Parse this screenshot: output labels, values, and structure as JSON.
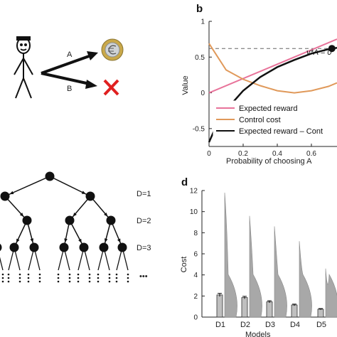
{
  "panel_a": {
    "option_a": "A",
    "option_b": "B",
    "coin_icon": "euro-coin-icon",
    "cross_icon": "red-cross-icon",
    "figure_icon": "stick-figure-icon",
    "cross_color": "#e02020"
  },
  "panel_b": {
    "label": "b",
    "annotation": "v*A = 0",
    "legend": [
      "Expected reward",
      "Control cost",
      "Expected reward – Cont"
    ],
    "colors": {
      "expected_reward": "#e8739a",
      "control_cost": "#e0995a",
      "difference": "#111111"
    }
  },
  "panel_c": {
    "depth_labels": [
      "D=1",
      "D=2",
      "D=3"
    ],
    "ellipsis": "•••"
  },
  "panel_d": {
    "label": "d",
    "bar_color": "#bfbfbf",
    "violin_color": "#a8a8a8"
  },
  "chart_data": [
    {
      "type": "line",
      "title": "",
      "xlabel": "Probability of choosing A",
      "ylabel": "Value",
      "xlim": [
        0,
        0.75
      ],
      "ylim": [
        -0.75,
        1.0
      ],
      "xticks": [
        "0",
        "0.2",
        "0.4",
        "0.6"
      ],
      "yticks": [
        "-0.5",
        "0",
        "0.5",
        "1"
      ],
      "reference_line": {
        "y": 0.62,
        "style": "dashed"
      },
      "marker": {
        "x": 0.72,
        "y": 0.62
      },
      "series": [
        {
          "name": "Expected reward",
          "x": [
            0,
            0.75
          ],
          "y": [
            0.0,
            0.75
          ]
        },
        {
          "name": "Control cost",
          "x": [
            0,
            0.1,
            0.2,
            0.3,
            0.4,
            0.5,
            0.6,
            0.7,
            0.75
          ],
          "y": [
            0.69,
            0.32,
            0.19,
            0.1,
            0.03,
            0.0,
            0.03,
            0.09,
            0.14
          ]
        },
        {
          "name": "Expected reward – Cont",
          "x": [
            0,
            0.05,
            0.1,
            0.2,
            0.3,
            0.4,
            0.5,
            0.6,
            0.7,
            0.75
          ],
          "y": [
            -0.69,
            -0.42,
            -0.24,
            0.03,
            0.22,
            0.36,
            0.46,
            0.55,
            0.61,
            0.63
          ]
        }
      ],
      "legend_position": "bottom-right"
    },
    {
      "type": "bar",
      "title": "",
      "xlabel": "Models",
      "ylabel": "Cost",
      "categories": [
        "D1",
        "D2",
        "D3",
        "D4",
        "D5"
      ],
      "values": [
        2.1,
        1.85,
        1.45,
        1.15,
        0.75
      ],
      "errors": [
        0.15,
        0.12,
        0.1,
        0.08,
        0.06
      ],
      "violin_max": [
        11.8,
        9.6,
        8.6,
        7.2,
        4.6
      ],
      "ylim": [
        0,
        12
      ],
      "yticks": [
        "0",
        "2",
        "4",
        "6",
        "8",
        "10",
        "12"
      ]
    }
  ]
}
